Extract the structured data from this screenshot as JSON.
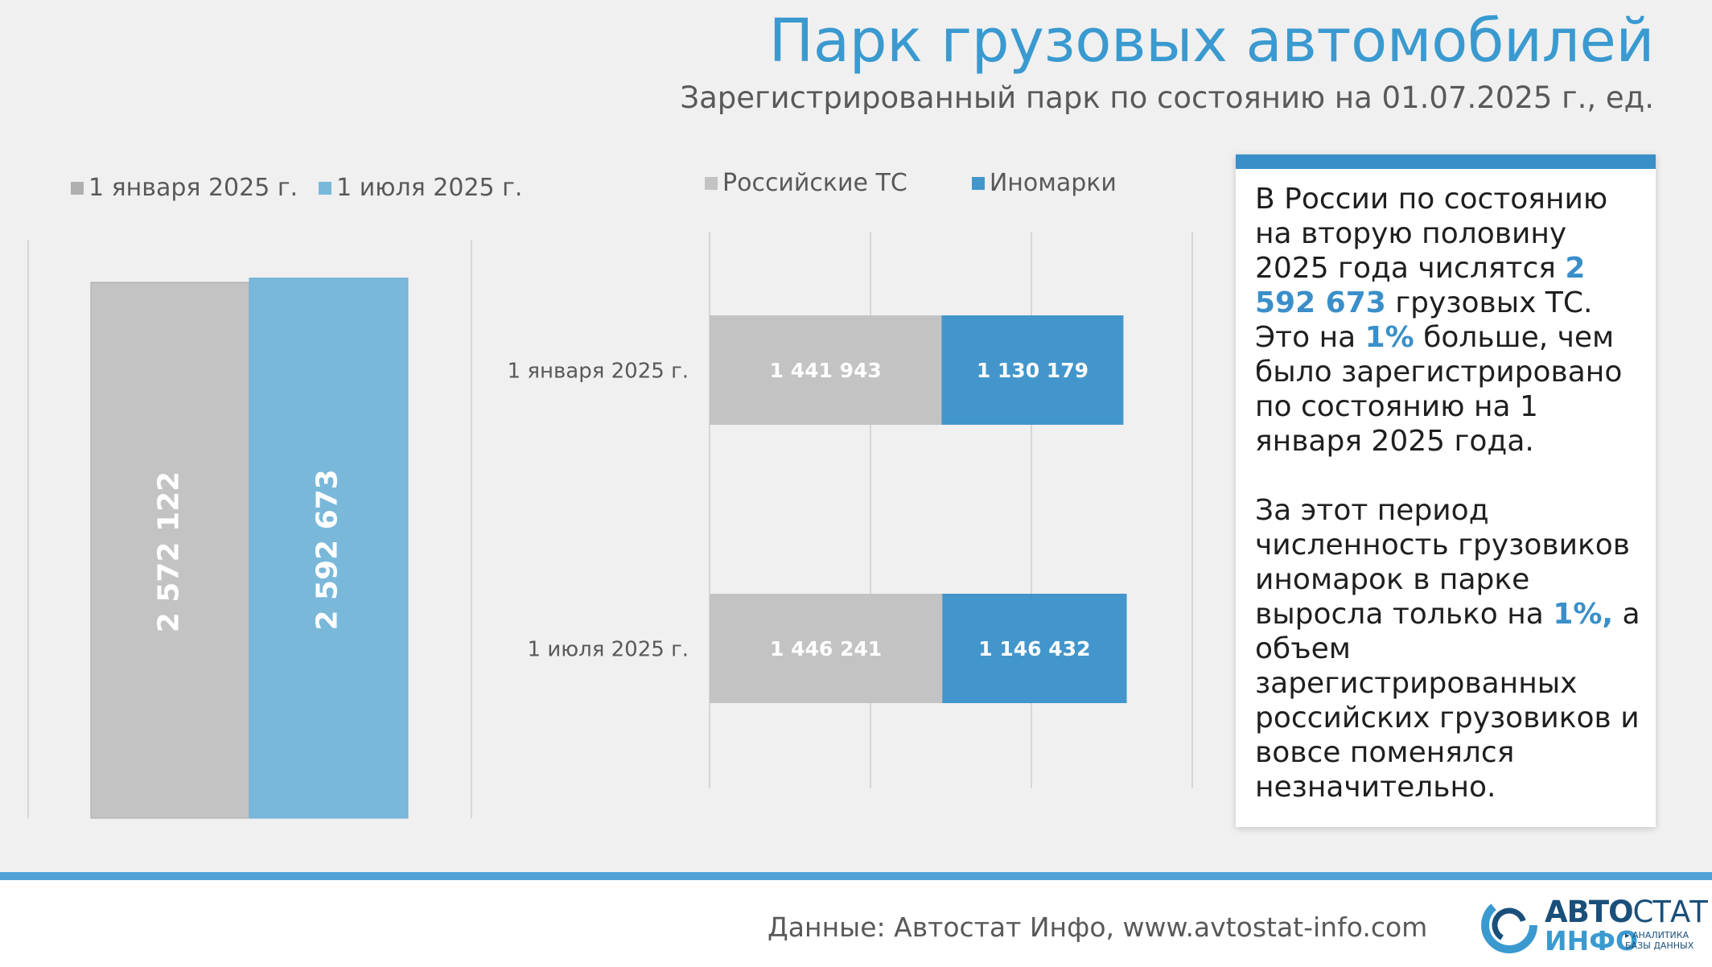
{
  "header": {
    "title": "Парк грузовых автомобилей",
    "subtitle": "Зарегистрированный парк по состоянию на 01.07.2025 г., ед."
  },
  "colors": {
    "accent": "#3a9ad0",
    "gray_bar": "#c3c3c3",
    "light_blue_bar": "#7ab8da",
    "blue_bar": "#4396cb",
    "stripe": "#4fa3d6"
  },
  "chart_data": [
    {
      "type": "bar",
      "orientation": "vertical",
      "legend": [
        "1 января 2025 г.",
        "1 июля 2025 г."
      ],
      "legend_position": "top-left",
      "series": [
        {
          "name": "1 января 2025 г.",
          "value": 2572122,
          "label": "2 572 122",
          "color": "#c3c3c3"
        },
        {
          "name": "1 июля 2025 г.",
          "value": 2592673,
          "label": "2 592 673",
          "color": "#7ab8da"
        }
      ],
      "ylim": [
        0,
        2800000
      ],
      "grid": false
    },
    {
      "type": "bar",
      "orientation": "horizontal-stacked",
      "legend": [
        "Российские ТС",
        "Иномарки"
      ],
      "legend_position": "top",
      "categories": [
        "1 января 2025 г.",
        "1 июля 2025 г."
      ],
      "series": [
        {
          "name": "Российские ТС",
          "values": [
            1441943,
            1446241
          ],
          "labels": [
            "1 441 943",
            "1 446 241"
          ],
          "color": "#c3c3c3"
        },
        {
          "name": "Иномарки",
          "values": [
            1130179,
            1146432
          ],
          "labels": [
            "1 130 179",
            "1 146 432"
          ],
          "color": "#4396cb"
        }
      ],
      "xlim": [
        0,
        3000000
      ],
      "grid": true
    }
  ],
  "textbox": {
    "p1": [
      "В России по состоянию на вторую половину 2025 года числятся ",
      "2 592 673",
      " грузовых ТС. Это на ",
      "1%",
      " больше, чем было зарегистрировано по состоянию на 1 января 2025 года."
    ],
    "p2": [
      "За этот период численность грузовиков иномарок в парке выросла только на ",
      "1%,",
      " а объем зарегистрированных российских грузовиков и вовсе поменялся незначительно."
    ]
  },
  "footer": {
    "source": "Данные: Автостат Инфо, www.avtostat-info.com",
    "logo_line1_bold": "АВТО",
    "logo_line1_light": "СТАТ",
    "logo_line2": "ИНФО",
    "logo_tagline1": "▸ АНАЛИТИКА",
    "logo_tagline2": "БАЗЫ ДАННЫХ"
  }
}
